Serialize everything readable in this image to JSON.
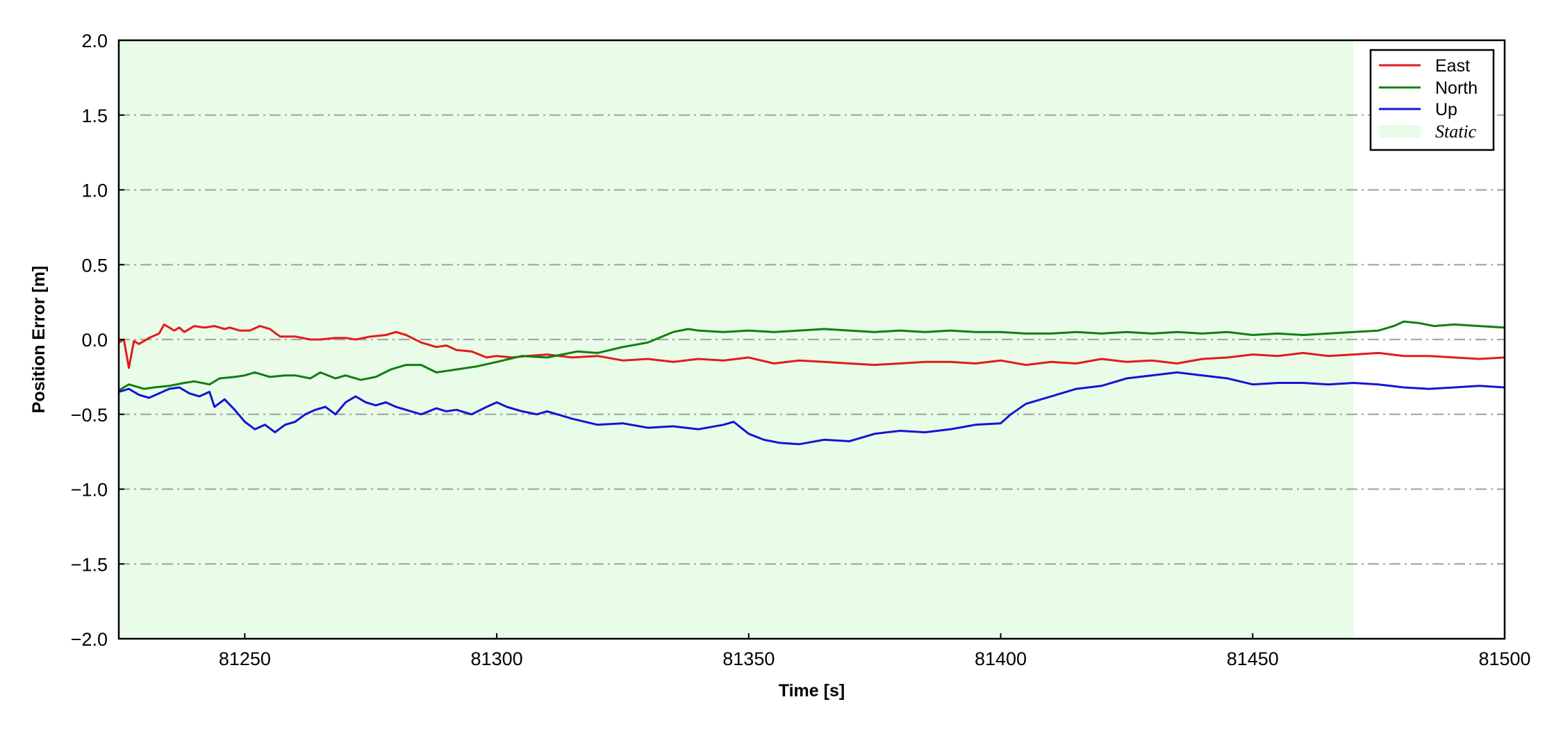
{
  "chart_data": {
    "type": "line",
    "xlabel": "Time [s]",
    "ylabel": "Position Error [m]",
    "xlim": [
      81225,
      81500
    ],
    "ylim": [
      -2.0,
      2.0
    ],
    "xticks": [
      81250,
      81300,
      81350,
      81400,
      81450,
      81500
    ],
    "xtick_labels": [
      "81250",
      "81300",
      "81350",
      "81400",
      "81450",
      "81500"
    ],
    "yticks": [
      2.0,
      1.5,
      1.0,
      0.5,
      0.0,
      -0.5,
      -1.0,
      -1.5,
      -2.0
    ],
    "ytick_labels": [
      "2.0",
      "1.5",
      "1.0",
      "0.5",
      "0.0",
      "−0.5",
      "−1.0",
      "−1.5",
      "−2.0"
    ],
    "grid": "horizontal dash-dot",
    "legend_position": "top-right",
    "static_region": {
      "label": "Static",
      "x_start": 81225,
      "x_end": 81470,
      "color": "#e8fce8"
    },
    "series": [
      {
        "name": "East",
        "color": "#e31a1c",
        "x": [
          81225,
          81226,
          81227,
          81228,
          81229,
          81231,
          81233,
          81234,
          81236,
          81237,
          81238,
          81240,
          81242,
          81244,
          81246,
          81247,
          81249,
          81251,
          81253,
          81255,
          81257,
          81260,
          81263,
          81265,
          81268,
          81270,
          81272,
          81275,
          81278,
          81280,
          81282,
          81285,
          81288,
          81290,
          81292,
          81295,
          81298,
          81300,
          81303,
          81306,
          81310,
          81315,
          81320,
          81325,
          81330,
          81335,
          81340,
          81345,
          81350,
          81355,
          81360,
          81365,
          81370,
          81375,
          81380,
          81385,
          81390,
          81395,
          81400,
          81405,
          81410,
          81415,
          81420,
          81425,
          81430,
          81435,
          81440,
          81445,
          81450,
          81455,
          81460,
          81465,
          81470,
          81475,
          81480,
          81485,
          81490,
          81495,
          81500
        ],
        "y": [
          -0.02,
          0.0,
          -0.19,
          -0.01,
          -0.03,
          0.01,
          0.04,
          0.1,
          0.06,
          0.08,
          0.05,
          0.09,
          0.08,
          0.09,
          0.07,
          0.08,
          0.06,
          0.06,
          0.09,
          0.07,
          0.02,
          0.02,
          0.0,
          0.0,
          0.01,
          0.01,
          0.0,
          0.02,
          0.03,
          0.05,
          0.03,
          -0.02,
          -0.05,
          -0.04,
          -0.07,
          -0.08,
          -0.12,
          -0.11,
          -0.12,
          -0.11,
          -0.1,
          -0.12,
          -0.11,
          -0.14,
          -0.13,
          -0.15,
          -0.13,
          -0.14,
          -0.12,
          -0.16,
          -0.14,
          -0.15,
          -0.16,
          -0.17,
          -0.16,
          -0.15,
          -0.15,
          -0.16,
          -0.14,
          -0.17,
          -0.15,
          -0.16,
          -0.13,
          -0.15,
          -0.14,
          -0.16,
          -0.13,
          -0.12,
          -0.1,
          -0.11,
          -0.09,
          -0.11,
          -0.1,
          -0.09,
          -0.11,
          -0.11,
          -0.12,
          -0.13,
          -0.12
        ]
      },
      {
        "name": "North",
        "color": "#107e10",
        "x": [
          81225,
          81227,
          81230,
          81232,
          81235,
          81238,
          81240,
          81243,
          81245,
          81248,
          81250,
          81252,
          81255,
          81258,
          81260,
          81263,
          81265,
          81268,
          81270,
          81273,
          81276,
          81279,
          81282,
          81285,
          81288,
          81292,
          81296,
          81300,
          81305,
          81310,
          81313,
          81316,
          81320,
          81325,
          81330,
          81335,
          81338,
          81340,
          81345,
          81350,
          81355,
          81360,
          81365,
          81370,
          81375,
          81380,
          81385,
          81390,
          81395,
          81400,
          81405,
          81410,
          81415,
          81420,
          81425,
          81430,
          81435,
          81440,
          81445,
          81450,
          81455,
          81460,
          81465,
          81470,
          81475,
          81478,
          81480,
          81483,
          81486,
          81490,
          81495,
          81500
        ],
        "y": [
          -0.34,
          -0.3,
          -0.33,
          -0.32,
          -0.31,
          -0.29,
          -0.28,
          -0.3,
          -0.26,
          -0.25,
          -0.24,
          -0.22,
          -0.25,
          -0.24,
          -0.24,
          -0.26,
          -0.22,
          -0.26,
          -0.24,
          -0.27,
          -0.25,
          -0.2,
          -0.17,
          -0.17,
          -0.22,
          -0.2,
          -0.18,
          -0.15,
          -0.11,
          -0.12,
          -0.1,
          -0.08,
          -0.09,
          -0.05,
          -0.02,
          0.05,
          0.07,
          0.06,
          0.05,
          0.06,
          0.05,
          0.06,
          0.07,
          0.06,
          0.05,
          0.06,
          0.05,
          0.06,
          0.05,
          0.05,
          0.04,
          0.04,
          0.05,
          0.04,
          0.05,
          0.04,
          0.05,
          0.04,
          0.05,
          0.03,
          0.04,
          0.03,
          0.04,
          0.05,
          0.06,
          0.09,
          0.12,
          0.11,
          0.09,
          0.1,
          0.09,
          0.08
        ]
      },
      {
        "name": "Up",
        "color": "#1414d2",
        "x": [
          81225,
          81227,
          81229,
          81231,
          81233,
          81235,
          81237,
          81239,
          81241,
          81243,
          81244,
          81246,
          81248,
          81250,
          81252,
          81254,
          81256,
          81258,
          81260,
          81262,
          81264,
          81266,
          81268,
          81270,
          81272,
          81274,
          81276,
          81278,
          81280,
          81282,
          81285,
          81288,
          81290,
          81292,
          81295,
          81298,
          81300,
          81302,
          81305,
          81308,
          81310,
          81315,
          81320,
          81325,
          81330,
          81335,
          81340,
          81345,
          81347,
          81350,
          81353,
          81356,
          81360,
          81365,
          81370,
          81375,
          81380,
          81385,
          81390,
          81395,
          81400,
          81402,
          81405,
          81410,
          81415,
          81420,
          81425,
          81430,
          81435,
          81440,
          81445,
          81450,
          81455,
          81460,
          81465,
          81470,
          81475,
          81480,
          81485,
          81490,
          81495,
          81500
        ],
        "y": [
          -0.35,
          -0.33,
          -0.37,
          -0.39,
          -0.36,
          -0.33,
          -0.32,
          -0.36,
          -0.38,
          -0.35,
          -0.45,
          -0.4,
          -0.47,
          -0.55,
          -0.6,
          -0.57,
          -0.62,
          -0.57,
          -0.55,
          -0.5,
          -0.47,
          -0.45,
          -0.5,
          -0.42,
          -0.38,
          -0.42,
          -0.44,
          -0.42,
          -0.45,
          -0.47,
          -0.5,
          -0.46,
          -0.48,
          -0.47,
          -0.5,
          -0.45,
          -0.42,
          -0.45,
          -0.48,
          -0.5,
          -0.48,
          -0.53,
          -0.57,
          -0.56,
          -0.59,
          -0.58,
          -0.6,
          -0.57,
          -0.55,
          -0.63,
          -0.67,
          -0.69,
          -0.7,
          -0.67,
          -0.68,
          -0.63,
          -0.61,
          -0.62,
          -0.6,
          -0.57,
          -0.56,
          -0.5,
          -0.43,
          -0.38,
          -0.33,
          -0.31,
          -0.26,
          -0.24,
          -0.22,
          -0.24,
          -0.26,
          -0.3,
          -0.29,
          -0.29,
          -0.3,
          -0.29,
          -0.3,
          -0.32,
          -0.33,
          -0.32,
          -0.31,
          -0.32
        ]
      }
    ]
  }
}
